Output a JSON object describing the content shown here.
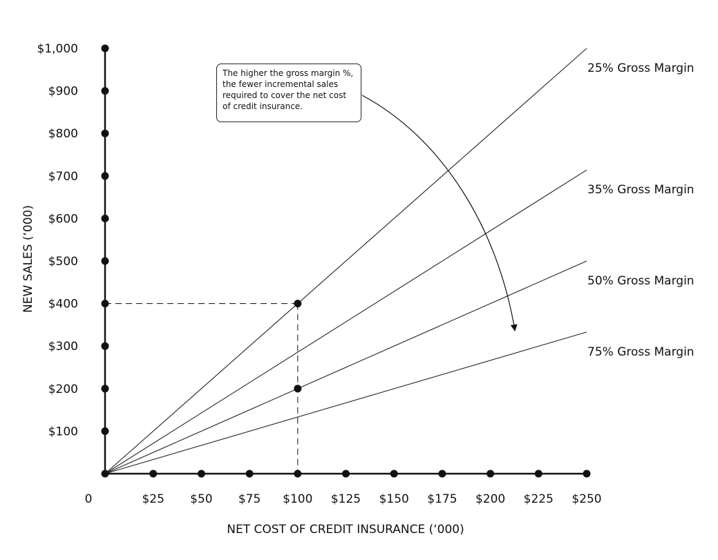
{
  "chart_data": {
    "type": "line",
    "title": "",
    "xlabel": "NET COST OF CREDIT INSURANCE (‘000)",
    "ylabel": "NEW SALES (‘000)",
    "xlim": [
      0,
      250
    ],
    "ylim": [
      0,
      1000
    ],
    "x_origin_label": "0",
    "x_ticks": [
      {
        "value": 25,
        "label": "$25"
      },
      {
        "value": 50,
        "label": "$50"
      },
      {
        "value": 75,
        "label": "$75"
      },
      {
        "value": 100,
        "label": "$100"
      },
      {
        "value": 125,
        "label": "$125"
      },
      {
        "value": 150,
        "label": "$150"
      },
      {
        "value": 175,
        "label": "$175"
      },
      {
        "value": 200,
        "label": "$200"
      },
      {
        "value": 225,
        "label": "$225"
      },
      {
        "value": 250,
        "label": "$250"
      }
    ],
    "y_ticks": [
      {
        "value": 100,
        "label": "$100"
      },
      {
        "value": 200,
        "label": "$200"
      },
      {
        "value": 300,
        "label": "$300"
      },
      {
        "value": 400,
        "label": "$400"
      },
      {
        "value": 500,
        "label": "$500"
      },
      {
        "value": 600,
        "label": "$600"
      },
      {
        "value": 700,
        "label": "$700"
      },
      {
        "value": 800,
        "label": "$800"
      },
      {
        "value": 900,
        "label": "$900"
      },
      {
        "value": 1000,
        "label": "$1,000"
      }
    ],
    "series": [
      {
        "name": "25% Gross Margin",
        "x": [
          0,
          250
        ],
        "y": [
          0,
          1000
        ]
      },
      {
        "name": "35% Gross Margin",
        "x": [
          0,
          250
        ],
        "y": [
          0,
          714
        ]
      },
      {
        "name": "50% Gross Margin",
        "x": [
          0,
          250
        ],
        "y": [
          0,
          500
        ]
      },
      {
        "name": "75% Gross Margin",
        "x": [
          0,
          250
        ],
        "y": [
          0,
          333
        ]
      }
    ],
    "highlight_points": [
      {
        "x": 100,
        "y": 400
      },
      {
        "x": 100,
        "y": 200
      }
    ],
    "reference_lines": [
      {
        "from": [
          0,
          400
        ],
        "to": [
          100,
          400
        ]
      },
      {
        "from": [
          100,
          400
        ],
        "to": [
          100,
          0
        ]
      }
    ],
    "grid": false,
    "annotation": "The higher the gross margin %, the fewer incremental sales required to cover the net cost of credit insurance."
  }
}
